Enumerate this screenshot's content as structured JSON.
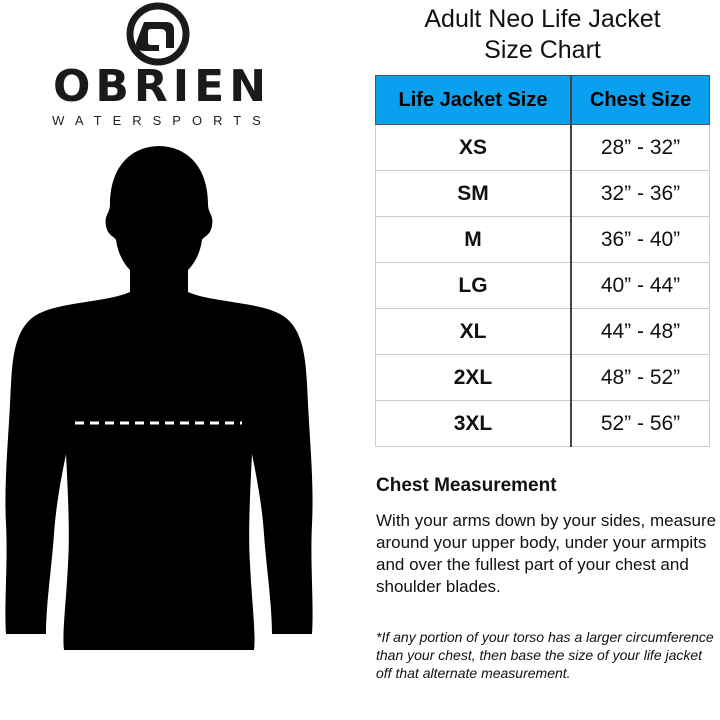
{
  "logo": {
    "brand": "OBRIEN",
    "tagline": "WATERSPORTS"
  },
  "title_line1": "Adult Neo Life Jacket",
  "title_line2": "Size Chart",
  "colors": {
    "header_bg": "#0aa0f0",
    "silhouette": "#000000"
  },
  "table": {
    "headers": [
      "Life Jacket Size",
      "Chest Size"
    ],
    "rows": [
      [
        "XS",
        "28” - 32”"
      ],
      [
        "SM",
        "32” - 36”"
      ],
      [
        "M",
        "36” - 40”"
      ],
      [
        "LG",
        "40” - 44”"
      ],
      [
        "XL",
        "44” - 48”"
      ],
      [
        "2XL",
        "48” - 52”"
      ],
      [
        "3XL",
        "52” - 56”"
      ]
    ]
  },
  "measurement": {
    "heading": "Chest Measurement",
    "body": "With your arms down by your sides, measure around your upper body, under your armpits and over the fullest part of your chest and shoulder blades.",
    "note": "*If any portion of your torso has a larger circumference than your chest, then base the size of your life jacket off that alternate measurement."
  }
}
